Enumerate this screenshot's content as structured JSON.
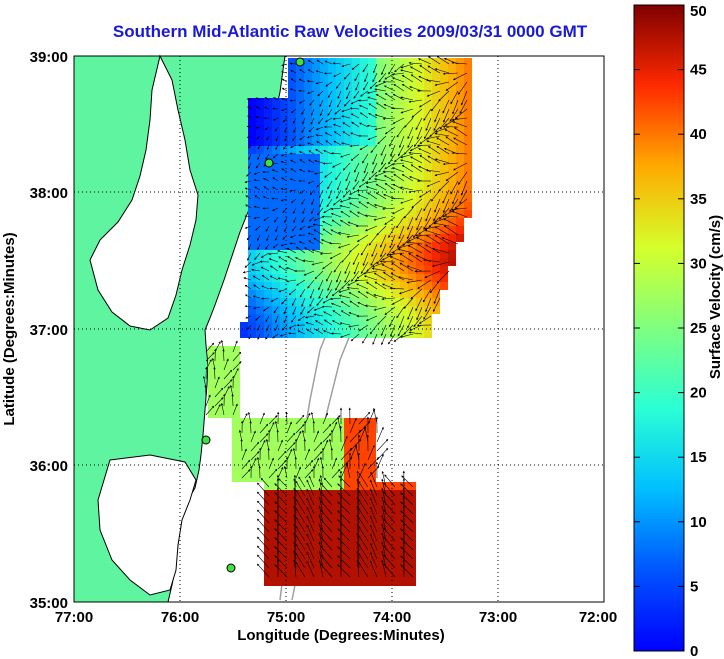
{
  "title": "Southern Mid-Atlantic Raw Velocities 2009/03/31 0000 GMT",
  "x_axis": {
    "label": "Longitude (Degrees:Minutes)",
    "ticks": [
      "77:00",
      "76:00",
      "75:00",
      "74:00",
      "73:00",
      "72:00"
    ]
  },
  "y_axis": {
    "label": "Latitude (Degrees:Minutes)",
    "ticks": [
      "39:00",
      "38:00",
      "37:00",
      "36:00",
      "35:00"
    ]
  },
  "colorbar": {
    "label": "Surface Velocity (cm/s)",
    "ticks": [
      "50",
      "45",
      "40",
      "35",
      "30",
      "25",
      "20",
      "15",
      "10",
      "5",
      "0"
    ],
    "min": 0,
    "max": 50
  },
  "colors": {
    "title": "#1a1ad6",
    "land": "#5ff5a0"
  }
}
